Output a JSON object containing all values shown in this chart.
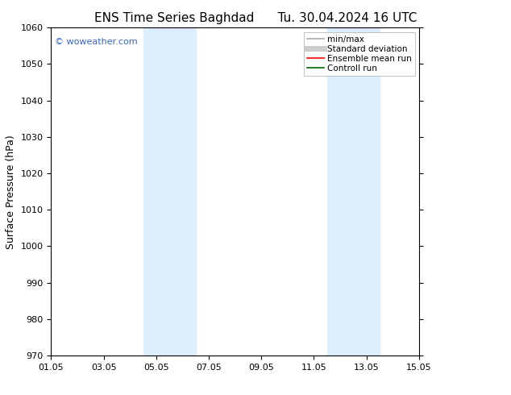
{
  "title_left": "ENS Time Series Baghdad",
  "title_right": "Tu. 30.04.2024 16 UTC",
  "ylabel": "Surface Pressure (hPa)",
  "ylim": [
    970,
    1060
  ],
  "yticks": [
    970,
    980,
    990,
    1000,
    1010,
    1020,
    1030,
    1040,
    1050,
    1060
  ],
  "xlim_start": 0,
  "xlim_end": 14,
  "xtick_positions": [
    0,
    2,
    4,
    6,
    8,
    10,
    12,
    14
  ],
  "xtick_labels": [
    "01.05",
    "03.05",
    "05.05",
    "07.05",
    "09.05",
    "11.05",
    "13.05",
    "15.05"
  ],
  "background_color": "#ffffff",
  "plot_bg_color": "#ffffff",
  "shaded_bands": [
    {
      "x_start": 3.5,
      "x_end": 5.5
    },
    {
      "x_start": 10.5,
      "x_end": 12.5
    }
  ],
  "shaded_color": "#ddeeff",
  "watermark_text": "© woweather.com",
  "watermark_color": "#3366cc",
  "legend_items": [
    {
      "label": "min/max",
      "color": "#aaaaaa",
      "lw": 1.2
    },
    {
      "label": "Standard deviation",
      "color": "#cccccc",
      "lw": 5
    },
    {
      "label": "Ensemble mean run",
      "color": "#ff0000",
      "lw": 1.2
    },
    {
      "label": "Controll run",
      "color": "#006600",
      "lw": 1.2
    }
  ],
  "grid_color": "#cccccc",
  "title_fontsize": 11,
  "tick_fontsize": 8,
  "ylabel_fontsize": 9,
  "watermark_fontsize": 8,
  "legend_fontsize": 7.5
}
